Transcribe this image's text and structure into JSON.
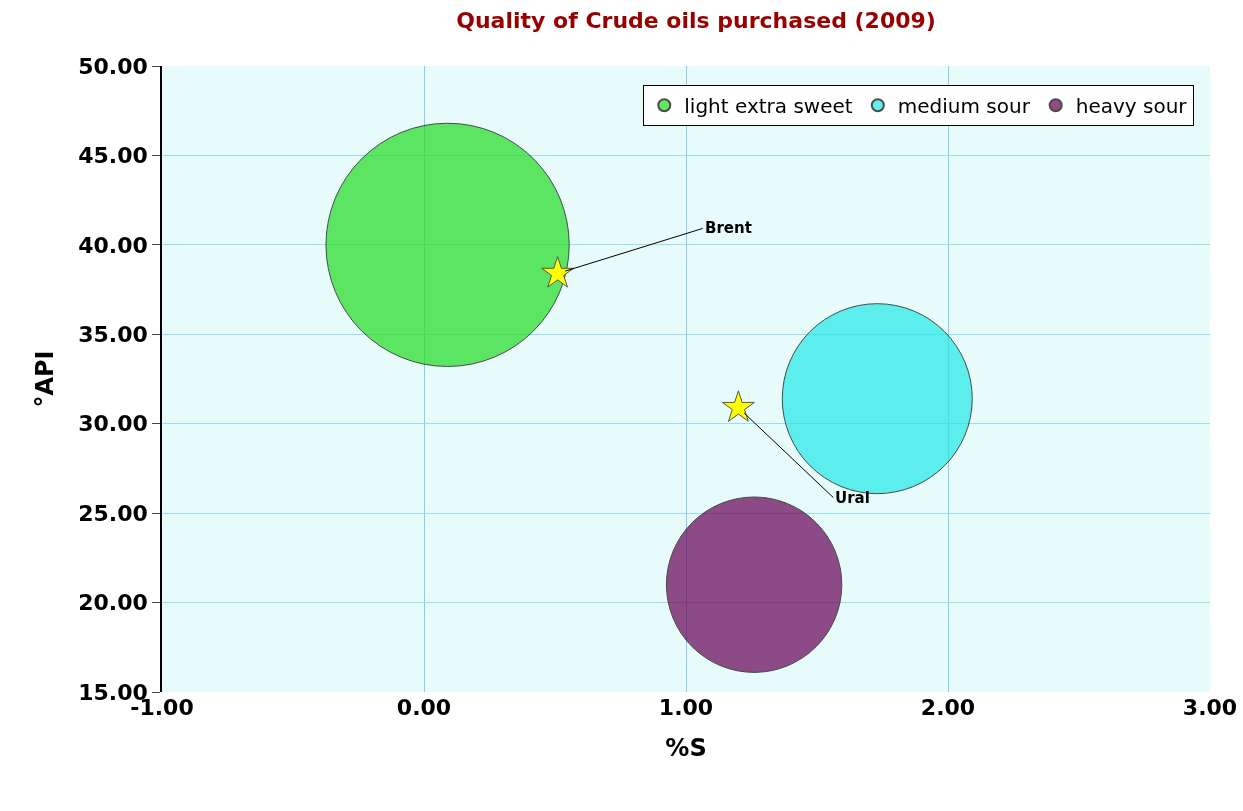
{
  "chart_data": {
    "type": "bubble",
    "title": "Quality of Crude oils purchased (2009)",
    "xlabel": "%S",
    "ylabel": "°API",
    "xlim": [
      -1,
      3
    ],
    "xticks": [
      {
        "value": -1,
        "label": "-1.00"
      },
      {
        "value": 0,
        "label": "0.00"
      },
      {
        "value": 1,
        "label": "1.00"
      },
      {
        "value": 2,
        "label": "2.00"
      },
      {
        "value": 3,
        "label": "3.00"
      }
    ],
    "ylim": [
      15,
      50
    ],
    "yticks": [
      {
        "value": 15,
        "label": "15.00"
      },
      {
        "value": 20,
        "label": "20.00"
      },
      {
        "value": 25,
        "label": "25.00"
      },
      {
        "value": 30,
        "label": "30.00"
      },
      {
        "value": 35,
        "label": "35.00"
      },
      {
        "value": 40,
        "label": "40.00"
      },
      {
        "value": 45,
        "label": "45.00"
      },
      {
        "value": 50,
        "label": "50.00"
      }
    ],
    "grid": true,
    "legend": "top right",
    "marker": "circle",
    "series": [
      {
        "name": "light extra sweet",
        "color": "#22dd22",
        "x": [
          0.09
        ],
        "values": [
          40.0
        ],
        "sizes": [
          1
        ]
      },
      {
        "name": "medium sour",
        "color": "#22e8e8",
        "x": [
          1.73
        ],
        "values": [
          31.4
        ],
        "sizes": [
          0.61
        ]
      },
      {
        "name": "heavy sour",
        "color": "#660055",
        "x": [
          1.26
        ],
        "values": [
          21.0
        ],
        "sizes": [
          0.52
        ]
      },
      {
        "type": "scatter",
        "marker": "star",
        "color": "#ffff00",
        "x": [
          0.51,
          1.2
        ],
        "values": [
          38.4,
          30.9
        ]
      }
    ],
    "annotations": [
      {
        "text": "Brent",
        "x": 0.51,
        "y": 38.4
      },
      {
        "text": "Ural",
        "x": 1.2,
        "y": 30.9
      }
    ]
  }
}
